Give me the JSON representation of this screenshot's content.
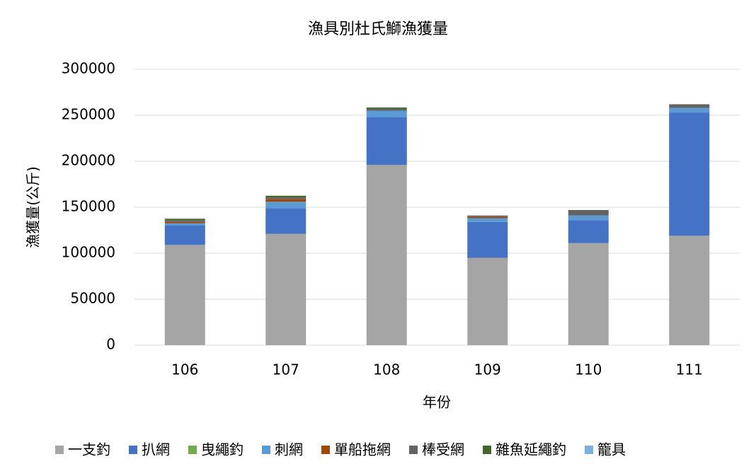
{
  "chart_data": {
    "type": "stacked-bar",
    "title": "漁具別杜氏鰤漁獲量",
    "x_label": "年份",
    "y_label": "漁獲量(公斤)",
    "categories": [
      "106",
      "107",
      "108",
      "109",
      "110",
      "111"
    ],
    "series": [
      {
        "name": "一支釣",
        "color": "#a5a5a5",
        "values": [
          109000,
          121000,
          196000,
          95000,
          111000,
          119000
        ]
      },
      {
        "name": "扒網",
        "color": "#4472c4",
        "values": [
          21000,
          28000,
          52000,
          39000,
          25000,
          134000
        ]
      },
      {
        "name": "曳繩釣",
        "color": "#70ad47",
        "values": [
          0,
          0,
          0,
          0,
          0,
          0
        ]
      },
      {
        "name": "刺網",
        "color": "#5b9bd5",
        "values": [
          2500,
          7000,
          7000,
          4000,
          5000,
          5000
        ]
      },
      {
        "name": "單船拖網",
        "color": "#9e480e",
        "values": [
          1500,
          3000,
          0,
          1500,
          0,
          0
        ]
      },
      {
        "name": "棒受網",
        "color": "#636363",
        "values": [
          2000,
          1500,
          2000,
          1500,
          6000,
          4000
        ]
      },
      {
        "name": "雜魚延繩釣",
        "color": "#43682b",
        "values": [
          1500,
          2000,
          1500,
          0,
          0,
          0
        ]
      },
      {
        "name": "籠具",
        "color": "#7cafdd",
        "values": [
          0,
          0,
          0,
          0,
          0,
          0
        ]
      }
    ],
    "ylim": [
      0,
      300000
    ],
    "yticks": [
      0,
      50000,
      100000,
      150000,
      200000,
      250000,
      300000
    ],
    "grid": true,
    "legend": "bottom"
  }
}
